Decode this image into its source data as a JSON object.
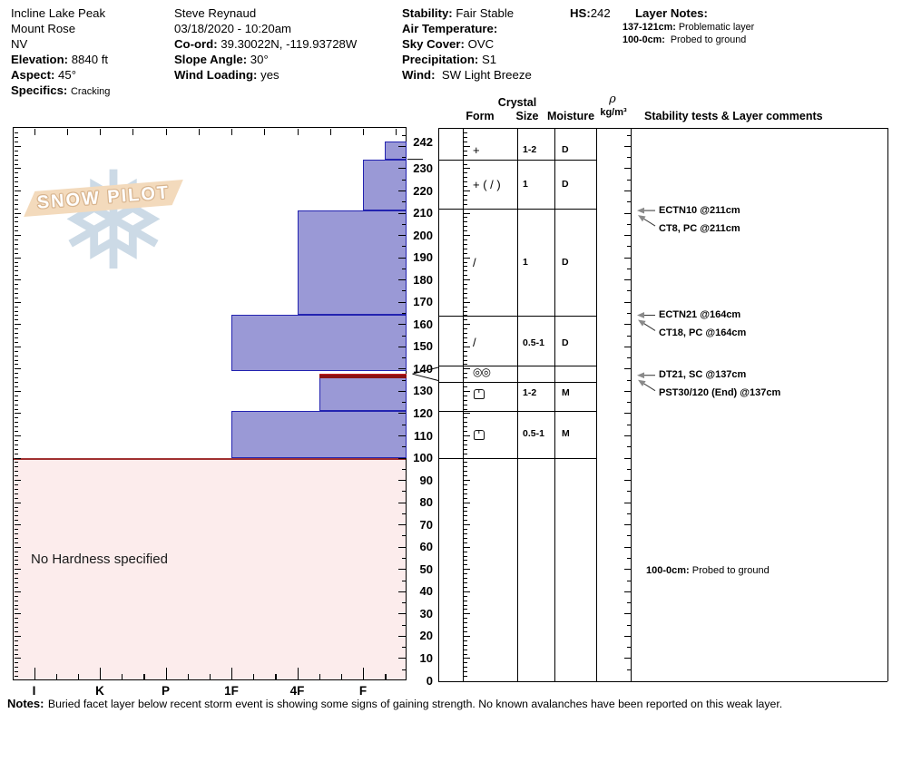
{
  "header": {
    "site": {
      "name": "Incline Lake Peak",
      "range": "Mount Rose",
      "state": "NV",
      "elevation_label": "Elevation:",
      "elevation": "8840 ft",
      "aspect_label": "Aspect:",
      "aspect": "45°",
      "specifics_label": "Specifics:",
      "specifics": "Cracking"
    },
    "observer": {
      "name": "Steve Reynaud",
      "datetime": "03/18/2020 - 10:20am",
      "coord_label": "Co-ord:",
      "coord": "39.30022N, -119.93728W",
      "slope_angle_label": "Slope Angle:",
      "slope_angle": "30°",
      "wind_loading_label": "Wind Loading:",
      "wind_loading": "yes"
    },
    "conditions": {
      "stability_label": "Stability:",
      "stability": "Fair Stable",
      "air_temp_label": "Air Temperature:",
      "air_temp": "",
      "sky_cover_label": "Sky Cover:",
      "sky_cover": "OVC",
      "precip_label": "Precipitation:",
      "precip": "S1",
      "wind_label": "Wind:",
      "wind": "SW Light Breeze"
    },
    "hs_label": "HS:",
    "hs_value": "242",
    "layer_notes": {
      "title": "Layer Notes:",
      "items": [
        {
          "range": "137-121cm:",
          "text": "Problematic layer"
        },
        {
          "range": "100-0cm:",
          "text": "Probed to ground"
        }
      ]
    }
  },
  "watermark": {
    "text": "SNOW PILOT",
    "snowflake_icon": "snowflake-icon"
  },
  "table_header": {
    "crystal": "Crystal",
    "form": "Form",
    "size": "Size",
    "moisture": "Moisture",
    "density_symbol": "ρ",
    "density_unit": "kg/m³",
    "comments": "Stability tests & Layer comments"
  },
  "chart_data": {
    "type": "bar",
    "subtype": "snow-hardness-profile",
    "title": "Snow pit hardness profile, depth (cm) vs hand hardness",
    "depth_axis": {
      "unit": "cm",
      "min": 0,
      "max": 242,
      "major_tick": 10,
      "labels": [
        242,
        230,
        220,
        210,
        200,
        190,
        180,
        170,
        160,
        150,
        140,
        130,
        120,
        110,
        100,
        90,
        80,
        70,
        60,
        50,
        40,
        30,
        20,
        10,
        0
      ]
    },
    "hardness_axis": {
      "categories": [
        "I",
        "K",
        "P",
        "1F",
        "4F",
        "F"
      ],
      "note": "hardness decreases left to right; bars grow from soft (right) to hard (left)"
    },
    "total_depth_cm": 242,
    "layers": [
      {
        "top_cm": 242,
        "bottom_cm": 234,
        "hardness": "F-",
        "form": "+",
        "form_icon": "pp-plus-icon",
        "size": "1-2",
        "moisture": "D"
      },
      {
        "top_cm": 234,
        "bottom_cm": 211,
        "hardness": "F",
        "form": "+ ( / )",
        "form_icon": "pp-df-icon",
        "size": "1",
        "moisture": "D"
      },
      {
        "top_cm": 211,
        "bottom_cm": 164,
        "hardness": "4F",
        "form": "/",
        "form_icon": "df-slash-icon",
        "size": "1",
        "moisture": "D"
      },
      {
        "top_cm": 164,
        "bottom_cm": 139,
        "hardness": "1F",
        "form": "/",
        "form_icon": "df-slash-icon",
        "size": "0.5-1",
        "moisture": "D"
      },
      {
        "top_cm": 139,
        "bottom_cm": 137,
        "hardness": null,
        "form": "◎◎",
        "form_icon": "double-circle-icon",
        "size": "",
        "moisture": "",
        "thin_weak_layer": true
      },
      {
        "top_cm": 137,
        "bottom_cm": 121,
        "hardness": "4F-",
        "form": "",
        "form_icon": "rounded-square-notch-icon",
        "size": "1-2",
        "moisture": "M",
        "problematic": true
      },
      {
        "top_cm": 121,
        "bottom_cm": 100,
        "hardness": "1F",
        "form": "",
        "form_icon": "rounded-square-notch-icon",
        "size": "0.5-1",
        "moisture": "M"
      },
      {
        "top_cm": 100,
        "bottom_cm": 0,
        "hardness": null,
        "no_hardness": true
      }
    ],
    "no_hardness_label": "No Hardness specified",
    "stability_tests": [
      {
        "label": "ECTN10 @211cm",
        "depth_cm": 211,
        "arrow": "horizontal"
      },
      {
        "label": "CT8, PC @211cm",
        "depth_cm": 211,
        "arrow": "diagonal"
      },
      {
        "label": "ECTN21 @164cm",
        "depth_cm": 164,
        "arrow": "horizontal"
      },
      {
        "label": "CT18, PC @164cm",
        "depth_cm": 164,
        "arrow": "diagonal"
      },
      {
        "label": "DT21, SC @137cm",
        "depth_cm": 137,
        "arrow": "horizontal"
      },
      {
        "label": "PST30/120 (End) @137cm",
        "depth_cm": 137,
        "arrow": "diagonal"
      }
    ],
    "layer_comments_in_chart": [
      {
        "range": "100-0cm:",
        "text": "Probed to ground",
        "depth_cm": 50
      }
    ]
  },
  "footer": {
    "notes_label": "Notes:",
    "notes_text": "Buried facet layer below recent storm event is showing some signs of gaining strength.  No known avalanches have been reported on this weak layer."
  },
  "colors": {
    "bar_fill": "#9a99d6",
    "bar_border": "#2323b0",
    "weak_layer_red": "#8b1414",
    "weak_layer_red_bright": "#cc2020",
    "no_hardness_fill": "#fcecec",
    "no_hardness_border": "#a03030",
    "watermark_band": "#f3dabc",
    "watermark_outline": "#d8b48e",
    "snowflake_blue": "#ccdae6",
    "arrow_gray": "#8a8a8a"
  }
}
